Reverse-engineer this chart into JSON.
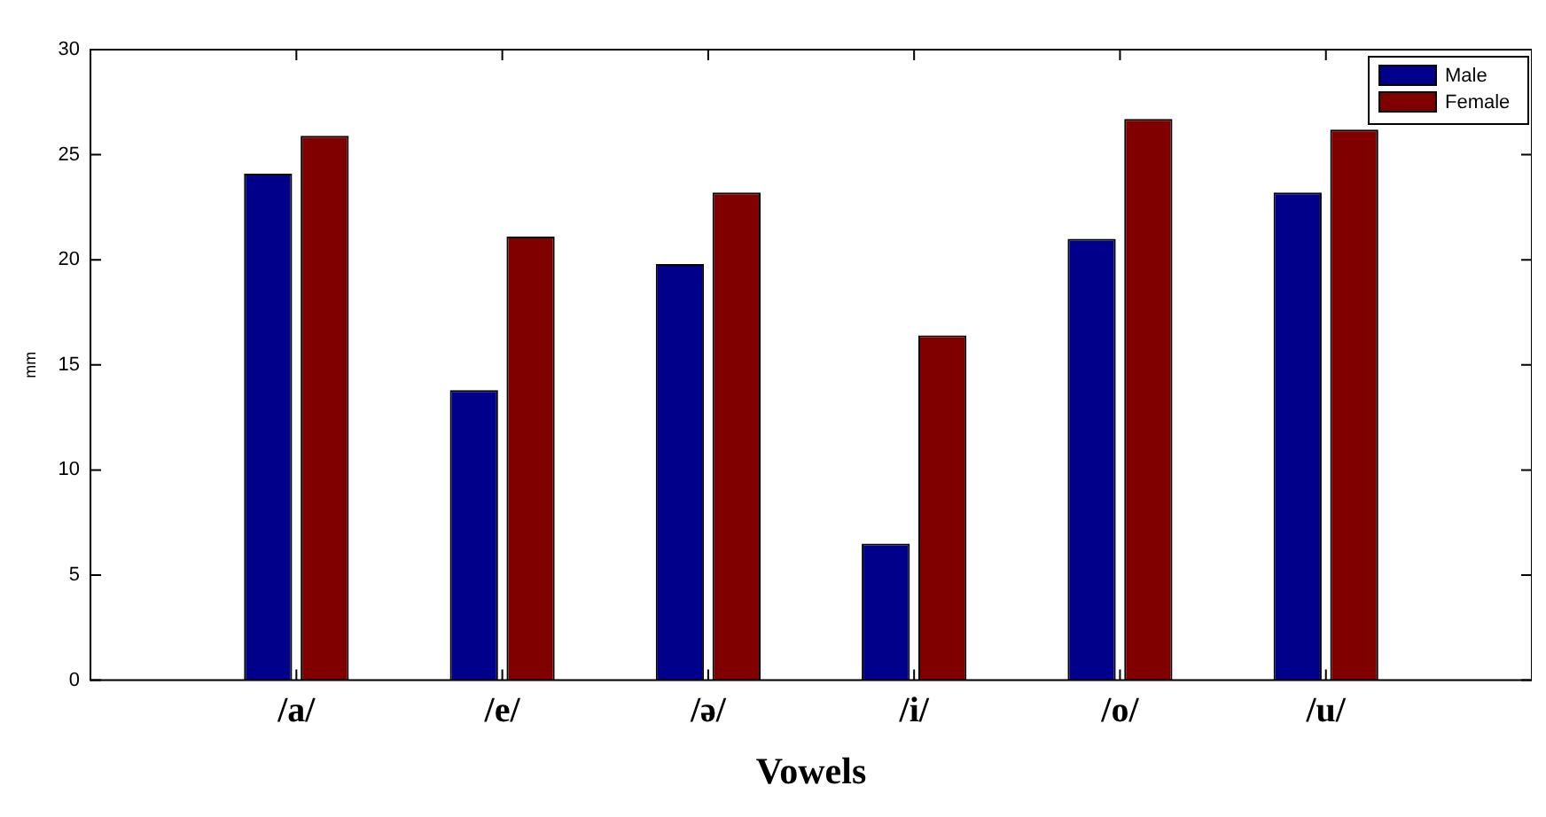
{
  "chart_data": {
    "type": "bar",
    "xlabel": "Vowels",
    "ylabel": "mm",
    "categories": [
      "/a/",
      "/e/",
      "/ə/",
      "/i/",
      "/o/",
      "/u/"
    ],
    "series": [
      {
        "name": "Male",
        "color": "#00008b",
        "values": [
          24.1,
          13.8,
          19.8,
          6.5,
          21.0,
          23.2
        ]
      },
      {
        "name": "Female",
        "color": "#800000",
        "values": [
          25.9,
          21.1,
          23.2,
          16.4,
          26.7,
          26.2
        ]
      }
    ],
    "ylim": [
      0,
      30
    ],
    "yticks": [
      0,
      5,
      10,
      15,
      20,
      25,
      30
    ],
    "grid": false,
    "legend": "top right"
  }
}
